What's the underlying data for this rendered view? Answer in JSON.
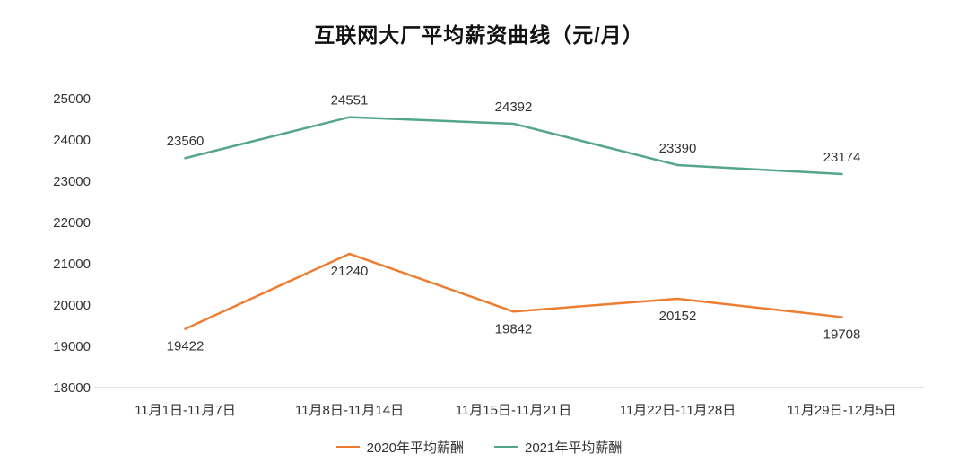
{
  "chart_data": {
    "type": "line",
    "title": "互联网大厂平均薪资曲线（元/月）",
    "categories": [
      "11月1日-11月7日",
      "11月8日-11月14日",
      "11月15日-11月21日",
      "11月22日-11月28日",
      "11月29日-12月5日"
    ],
    "series": [
      {
        "name": "2020年平均薪酬",
        "color": "#ED7D31",
        "values": [
          19422,
          21240,
          19842,
          20152,
          19708
        ],
        "label_position": "below"
      },
      {
        "name": "2021年平均薪酬",
        "color": "#55A58C",
        "values": [
          23560,
          24551,
          24392,
          23390,
          23174
        ],
        "label_position": "above"
      }
    ],
    "ylim": [
      18000,
      25000
    ],
    "ytick_step": 1000,
    "grid": false,
    "legend_position": "bottom",
    "text_color": "#333333",
    "axis_line_color": "#d9d9d9"
  }
}
